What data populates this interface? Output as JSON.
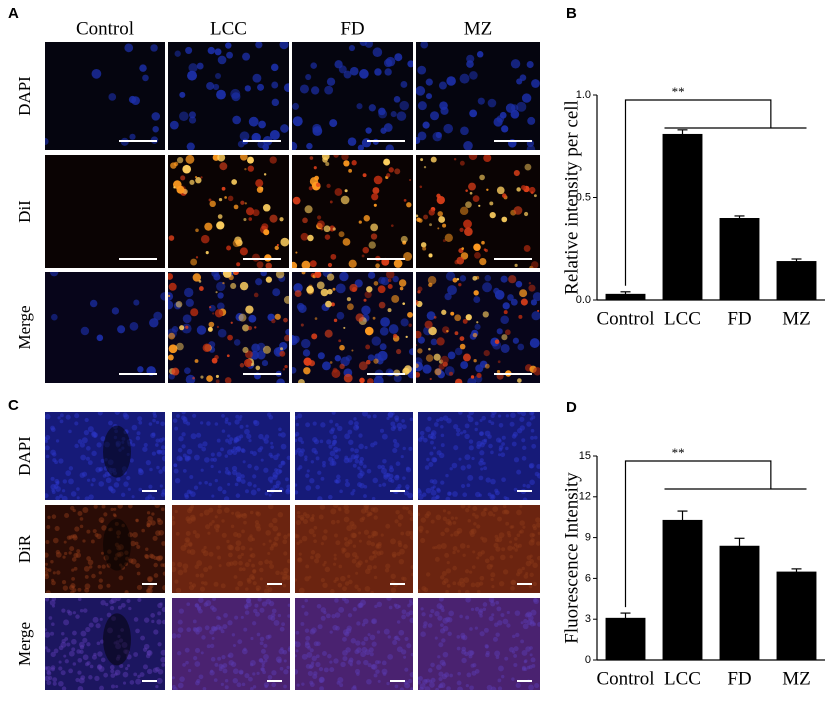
{
  "panels": {
    "a": {
      "letter": "A",
      "columns": [
        "Control",
        "LCC",
        "FD",
        "MZ"
      ],
      "rows": [
        "DAPI",
        "DiI",
        "Merge"
      ]
    },
    "c": {
      "letter": "C",
      "rows": [
        "DAPI",
        "DiR",
        "Merge"
      ]
    }
  },
  "chart_data": [
    {
      "type": "bar",
      "panel_label": "B",
      "y_label": "Relative intensity per cell",
      "categories": [
        "Control",
        "LCC",
        "FD",
        "MZ"
      ],
      "values": [
        0.03,
        0.81,
        0.4,
        0.19
      ],
      "errors": [
        0.01,
        0.02,
        0.01,
        0.01
      ],
      "color": "#000000",
      "ylim": [
        0,
        1
      ],
      "yticks": [
        {
          "value": 0,
          "label": "0.0"
        },
        0.5,
        {
          "value": 1,
          "label": "1.0"
        }
      ],
      "annotation": "**"
    },
    {
      "type": "bar",
      "panel_label": "D",
      "y_label": "Fluorescence Intensity",
      "categories": [
        "Control",
        "LCC",
        "FD",
        "MZ"
      ],
      "values": [
        3.1,
        10.3,
        8.4,
        6.5
      ],
      "errors": [
        0.35,
        0.65,
        0.55,
        0.2
      ],
      "color": "#000000",
      "ylim": [
        0,
        15
      ],
      "yticks": [
        0,
        3,
        6,
        9,
        12,
        15
      ],
      "annotation": "**"
    }
  ]
}
